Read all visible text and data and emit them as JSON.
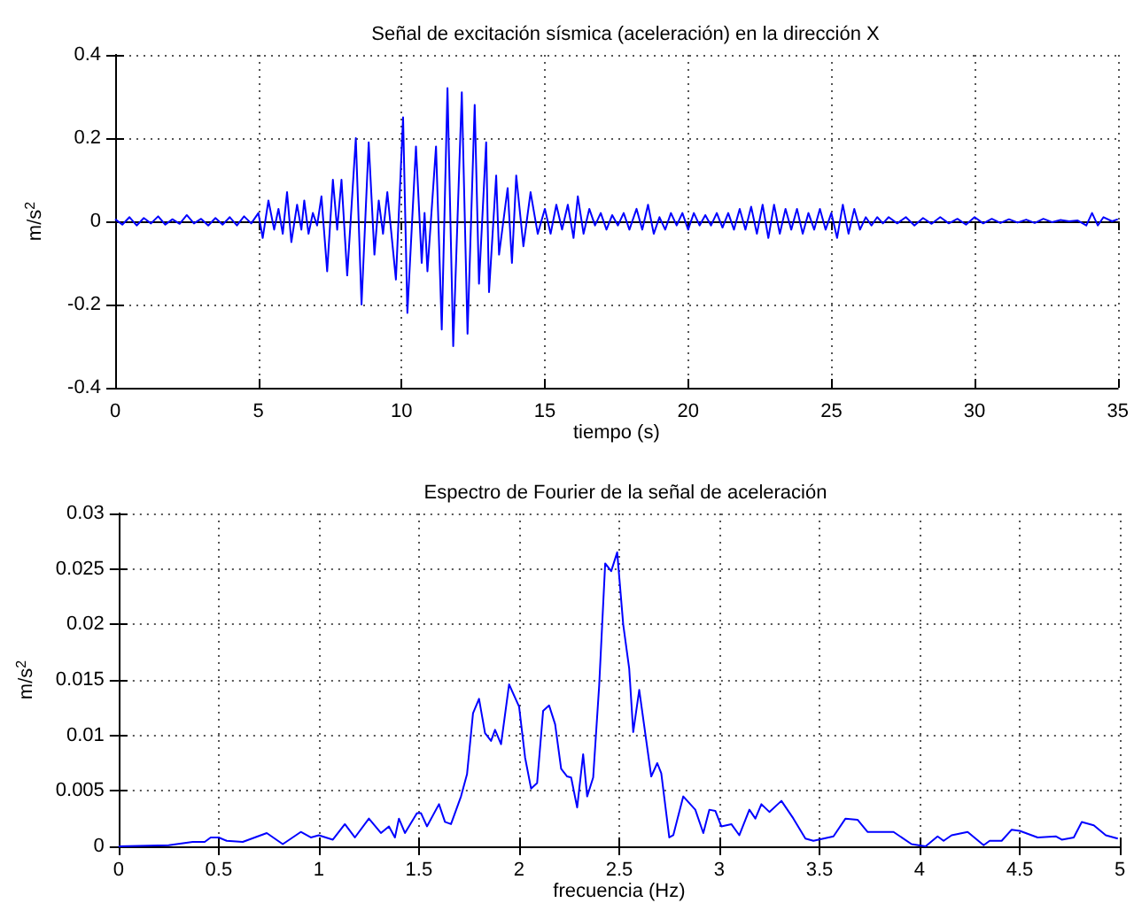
{
  "chart_data": [
    {
      "type": "line",
      "title": "Señal de excitación sísmica (aceleración) en la dirección X",
      "xlabel": "tiempo (s)",
      "ylabel": "m/s$^{2}$",
      "xlim": [
        0,
        35
      ],
      "xticks": [
        0,
        5,
        10,
        15,
        20,
        25,
        30,
        35
      ],
      "ylim": [
        -0.4,
        0.4
      ],
      "yticks": [
        -0.4,
        -0.2,
        0,
        0.2,
        0.4
      ],
      "grid": true,
      "marker": "none",
      "line_style": "solid",
      "series": [
        {
          "color": "#0000ff",
          "x": [
            0,
            0.25,
            0.5,
            0.75,
            1,
            1.25,
            1.5,
            1.75,
            2,
            2.25,
            2.5,
            2.75,
            3,
            3.25,
            3.5,
            3.75,
            4,
            4.25,
            4.5,
            4.75,
            5,
            5.15,
            5.35,
            5.55,
            5.7,
            5.85,
            6,
            6.15,
            6.35,
            6.5,
            6.6,
            6.75,
            6.9,
            7.05,
            7.2,
            7.4,
            7.6,
            7.75,
            7.9,
            8.1,
            8.4,
            8.6,
            8.85,
            9.05,
            9.2,
            9.35,
            9.5,
            9.8,
            10.05,
            10.2,
            10.5,
            10.7,
            10.8,
            10.9,
            11.2,
            11.4,
            11.6,
            11.8,
            12.1,
            12.3,
            12.55,
            12.7,
            12.95,
            13.05,
            13.3,
            13.4,
            13.7,
            13.85,
            14,
            14.25,
            14.5,
            14.75,
            15,
            15.2,
            15.4,
            15.6,
            15.8,
            16,
            16.15,
            16.35,
            16.55,
            16.75,
            16.95,
            17.15,
            17.35,
            17.55,
            17.75,
            17.95,
            18.2,
            18.4,
            18.6,
            18.8,
            19,
            19.2,
            19.4,
            19.6,
            19.8,
            20,
            20.2,
            20.4,
            20.6,
            20.8,
            21,
            21.2,
            21.4,
            21.6,
            21.8,
            22,
            22.2,
            22.4,
            22.6,
            22.8,
            23,
            23.2,
            23.4,
            23.6,
            23.8,
            24,
            24.2,
            24.4,
            24.6,
            24.8,
            25,
            25.2,
            25.4,
            25.6,
            25.8,
            26,
            26.2,
            26.4,
            26.6,
            26.8,
            27,
            27.3,
            27.6,
            27.9,
            28.2,
            28.5,
            28.8,
            29.1,
            29.4,
            29.7,
            30,
            30.3,
            30.6,
            30.9,
            31.2,
            31.5,
            31.8,
            32.1,
            32.4,
            32.7,
            33,
            33.3,
            33.6,
            33.9,
            34.1,
            34.3,
            34.5,
            34.8,
            35
          ],
          "values": [
            0.005,
            -0.008,
            0.01,
            -0.01,
            0.008,
            -0.005,
            0.012,
            -0.008,
            0.005,
            -0.006,
            0.015,
            -0.005,
            0.006,
            -0.01,
            0.008,
            -0.008,
            0.01,
            -0.01,
            0.012,
            -0.005,
            0.02,
            -0.04,
            0.05,
            -0.02,
            0.03,
            -0.03,
            0.07,
            -0.05,
            0.04,
            -0.02,
            0.05,
            -0.03,
            0.02,
            -0.01,
            0.06,
            -0.12,
            0.1,
            -0.02,
            0.1,
            -0.13,
            0.2,
            -0.2,
            0.19,
            -0.08,
            0.05,
            -0.03,
            0.07,
            -0.14,
            0.25,
            -0.22,
            0.18,
            -0.1,
            0.02,
            -0.12,
            0.18,
            -0.26,
            0.32,
            -0.3,
            0.31,
            -0.27,
            0.28,
            -0.15,
            0.19,
            -0.17,
            0.11,
            -0.08,
            0.08,
            -0.1,
            0.11,
            -0.06,
            0.07,
            -0.03,
            0.03,
            -0.03,
            0.04,
            -0.02,
            0.04,
            -0.04,
            0.06,
            -0.03,
            0.03,
            -0.01,
            0.02,
            -0.02,
            0.015,
            -0.01,
            0.02,
            -0.02,
            0.03,
            -0.02,
            0.04,
            -0.03,
            0.01,
            -0.02,
            0.02,
            -0.01,
            0.02,
            -0.02,
            0.02,
            -0.01,
            0.015,
            -0.01,
            0.02,
            -0.015,
            0.02,
            -0.02,
            0.03,
            -0.02,
            0.035,
            -0.03,
            0.04,
            -0.04,
            0.04,
            -0.03,
            0.03,
            -0.02,
            0.03,
            -0.03,
            0.02,
            -0.02,
            0.03,
            -0.02,
            0.02,
            -0.04,
            0.04,
            -0.03,
            0.03,
            -0.02,
            0.01,
            -0.01,
            0.01,
            -0.005,
            0.01,
            -0.005,
            0.01,
            -0.01,
            0.008,
            -0.006,
            0.01,
            -0.005,
            0.006,
            -0.008,
            0.01,
            -0.005,
            0.006,
            -0.004,
            0.005,
            -0.003,
            0.004,
            -0.004,
            0.006,
            -0.002,
            0.003,
            0,
            0.002,
            -0.01,
            0.02,
            -0.01,
            0.01,
            0,
            0.005
          ]
        }
      ]
    },
    {
      "type": "line",
      "title": "Espectro de Fourier de la señal de aceleración",
      "xlabel": "frecuencia (Hz)",
      "ylabel": "m/s$^{2}$",
      "xlim": [
        0,
        5
      ],
      "xticks": [
        0,
        0.5,
        1,
        1.5,
        2,
        2.5,
        3,
        3.5,
        4,
        4.5,
        5
      ],
      "ylim": [
        0,
        0.03
      ],
      "yticks": [
        0,
        0.005,
        0.01,
        0.015,
        0.02,
        0.025,
        0.03
      ],
      "grid": true,
      "marker": "none",
      "line_style": "solid",
      "series": [
        {
          "color": "#0000ff",
          "x": [
            0,
            0.25,
            0.37,
            0.43,
            0.46,
            0.5,
            0.54,
            0.62,
            0.74,
            0.82,
            0.91,
            0.96,
            1,
            1.07,
            1.13,
            1.18,
            1.25,
            1.31,
            1.35,
            1.38,
            1.4,
            1.43,
            1.49,
            1.51,
            1.54,
            1.6,
            1.63,
            1.66,
            1.71,
            1.74,
            1.77,
            1.8,
            1.83,
            1.86,
            1.88,
            1.91,
            1.95,
            2,
            2.03,
            2.06,
            2.09,
            2.12,
            2.15,
            2.18,
            2.21,
            2.24,
            2.26,
            2.29,
            2.32,
            2.34,
            2.37,
            2.4,
            2.43,
            2.46,
            2.49,
            2.52,
            2.55,
            2.57,
            2.6,
            2.66,
            2.69,
            2.71,
            2.75,
            2.77,
            2.82,
            2.88,
            2.92,
            2.95,
            2.98,
            3.01,
            3.06,
            3.1,
            3.15,
            3.18,
            3.21,
            3.25,
            3.31,
            3.37,
            3.43,
            3.47,
            3.57,
            3.63,
            3.69,
            3.74,
            3.87,
            3.96,
            4.03,
            4.09,
            4.12,
            4.16,
            4.24,
            4.32,
            4.35,
            4.41,
            4.46,
            4.5,
            4.59,
            4.68,
            4.71,
            4.77,
            4.81,
            4.87,
            4.93,
            4.99
          ],
          "values": [
            0,
            0.0001,
            0.0004,
            0.0004,
            0.0008,
            0.0008,
            0.0005,
            0.0004,
            0.0012,
            0.0002,
            0.0013,
            0.0008,
            0.001,
            0.0006,
            0.002,
            0.0008,
            0.0025,
            0.0012,
            0.0018,
            0.0008,
            0.0025,
            0.0012,
            0.003,
            0.003,
            0.0018,
            0.0038,
            0.0022,
            0.002,
            0.0045,
            0.0065,
            0.012,
            0.0133,
            0.0102,
            0.0095,
            0.0105,
            0.0092,
            0.0146,
            0.0126,
            0.008,
            0.0052,
            0.0057,
            0.0122,
            0.0127,
            0.011,
            0.007,
            0.0063,
            0.0062,
            0.0035,
            0.0083,
            0.0045,
            0.0062,
            0.0145,
            0.0255,
            0.0248,
            0.0265,
            0.02,
            0.016,
            0.0103,
            0.0141,
            0.0063,
            0.0075,
            0.0066,
            0.0008,
            0.001,
            0.0045,
            0.0033,
            0.0012,
            0.0033,
            0.0032,
            0.0018,
            0.002,
            0.001,
            0.0033,
            0.0025,
            0.0038,
            0.0031,
            0.0041,
            0.0025,
            0.0007,
            0.0005,
            0.0009,
            0.0025,
            0.0024,
            0.0013,
            0.0013,
            0.0002,
            0,
            0.0009,
            0.0005,
            0.001,
            0.0013,
            0.0001,
            0.0005,
            0.0005,
            0.0015,
            0.0014,
            0.0008,
            0.0009,
            0.0006,
            0.0008,
            0.0022,
            0.0019,
            0.001,
            0.0007
          ]
        }
      ]
    }
  ]
}
